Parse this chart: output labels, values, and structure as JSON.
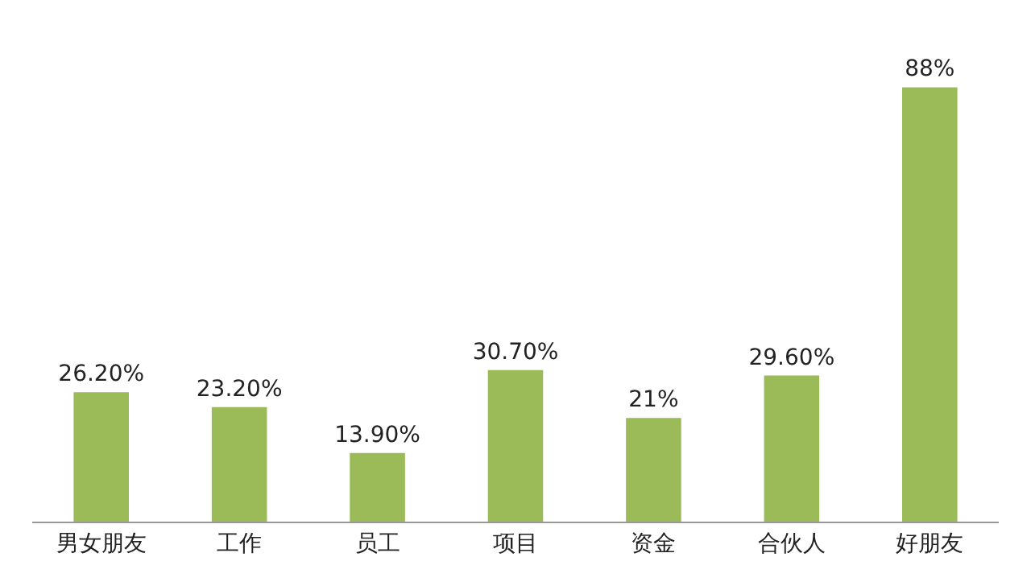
{
  "chart_data": {
    "type": "bar",
    "categories": [
      "男女朋友",
      "工作",
      "员工",
      "项目",
      "资金",
      "合伙人",
      "好朋友"
    ],
    "values": [
      26.2,
      23.2,
      13.9,
      30.7,
      21,
      29.6,
      88
    ],
    "value_labels": [
      "26.20%",
      "23.20%",
      "13.90%",
      "30.70%",
      "21%",
      "29.60%",
      "88%"
    ],
    "color": "#9bbb59",
    "tick_labels": "x"
  }
}
